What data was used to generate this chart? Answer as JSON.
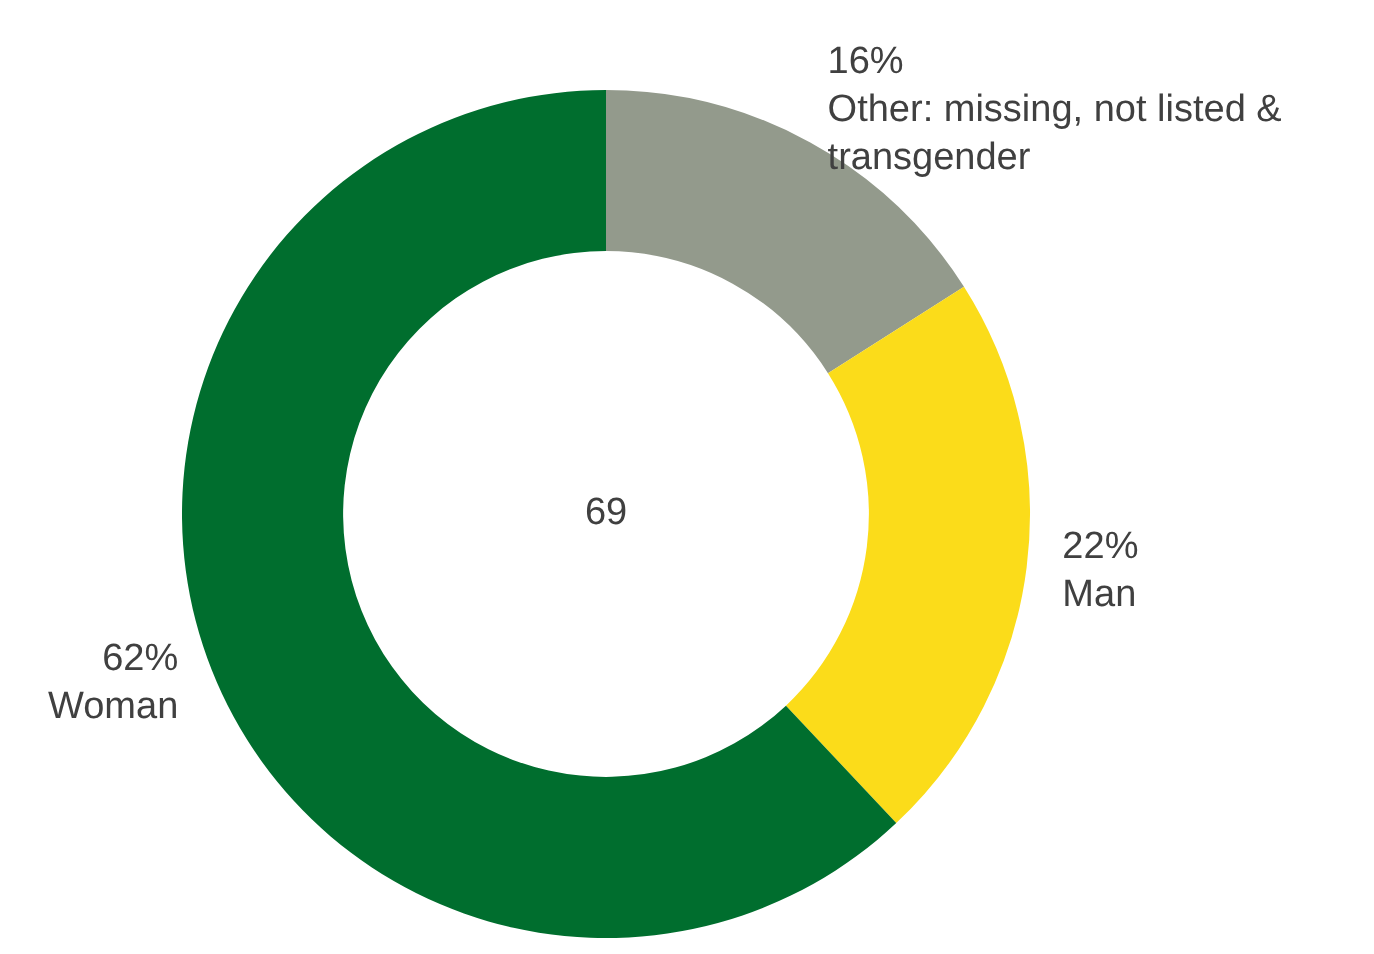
{
  "chart_data": {
    "type": "donut",
    "categories": [
      "Other: missing, not listed & transgender",
      "Man",
      "Woman"
    ],
    "values": [
      16,
      22,
      62
    ],
    "value_labels": [
      "16%",
      "22%",
      "62%"
    ],
    "colors": [
      "#939a8c",
      "#fbdc1a",
      "#006e2e"
    ],
    "annotations": [
      "69"
    ],
    "legend": false
  }
}
